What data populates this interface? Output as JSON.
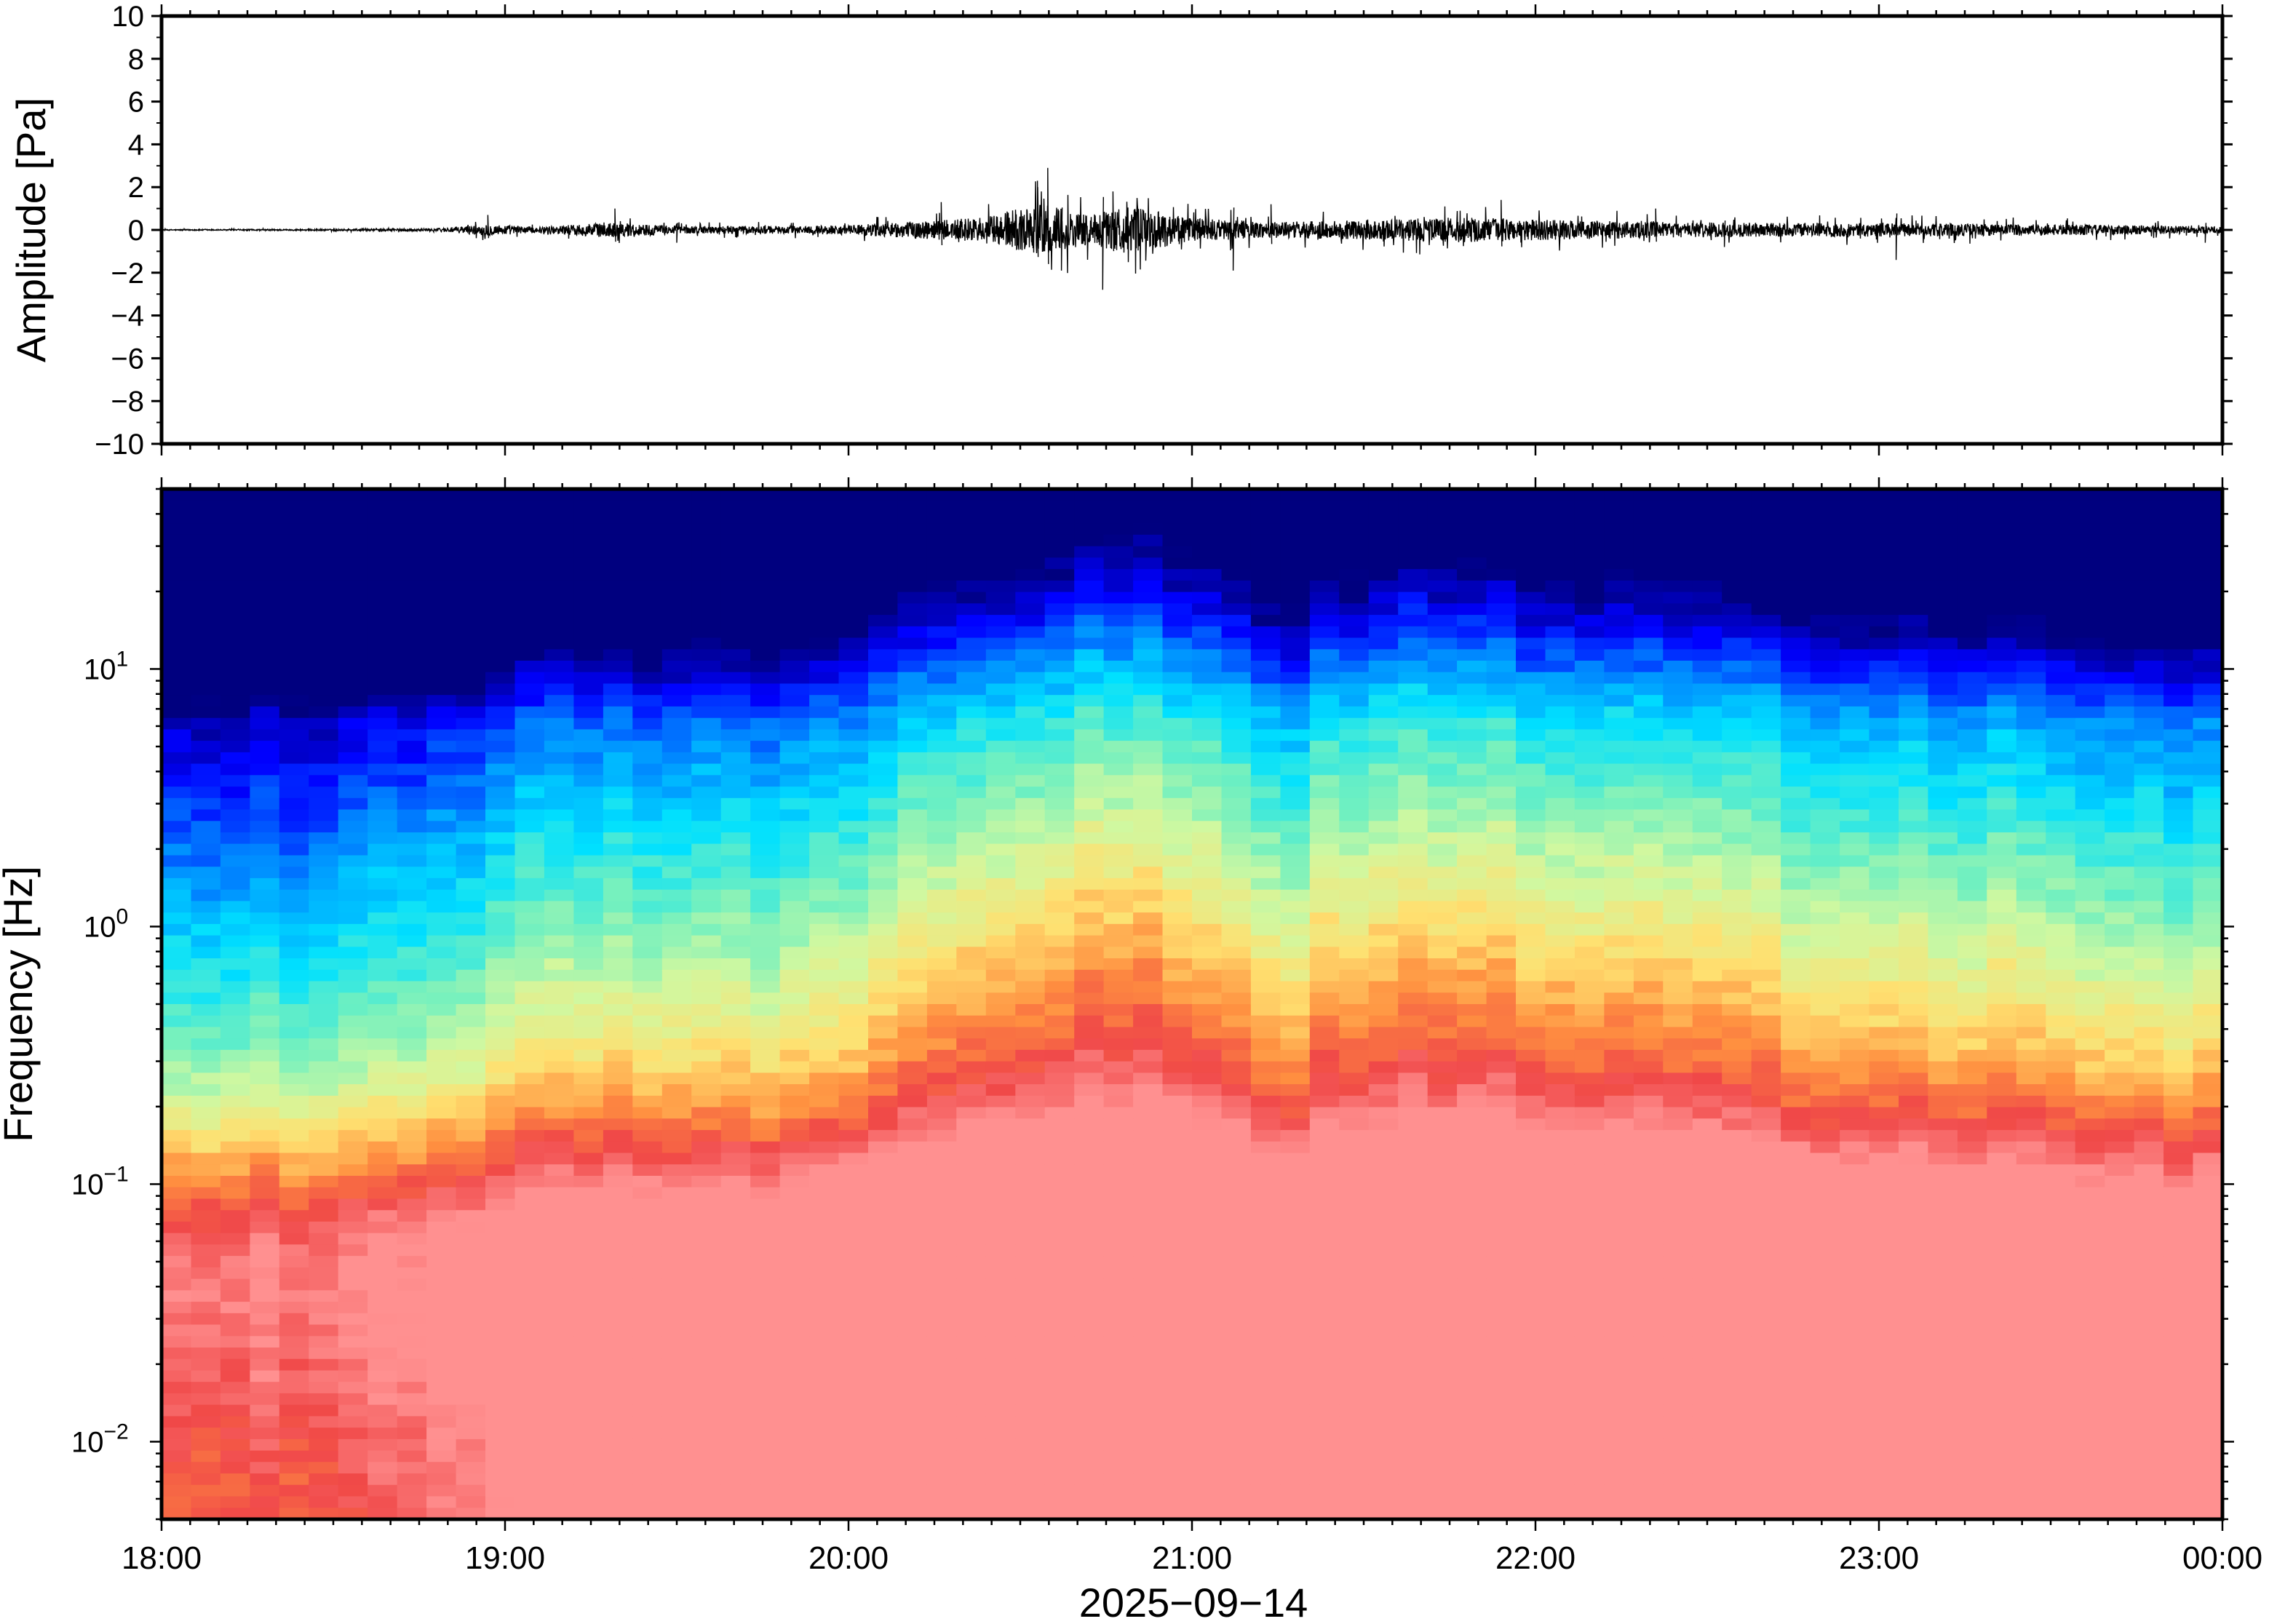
{
  "chart_data": [
    {
      "type": "line",
      "ylabel": "Amplitude [Pa]",
      "ylim": [
        -10,
        10
      ],
      "yticks": [
        "10",
        "8",
        "6",
        "4",
        "2",
        "0",
        "−2",
        "−4",
        "−6",
        "−8",
        "−10"
      ],
      "ytick_values": [
        10,
        8,
        6,
        4,
        2,
        0,
        -2,
        -4,
        -6,
        -8,
        -10
      ],
      "xlim_hours": [
        18,
        24
      ],
      "line_color": "#000000",
      "envelope": {
        "x_hours": [
          18.0,
          18.5,
          18.8,
          18.95,
          19.1,
          19.3,
          19.5,
          19.8,
          20.0,
          20.25,
          20.4,
          20.55,
          20.7,
          20.8,
          21.0,
          21.2,
          21.35,
          21.5,
          21.6,
          21.75,
          21.9,
          22.1,
          22.4,
          22.8,
          23.1,
          23.4,
          23.7,
          23.9,
          24.0
        ],
        "max_abs_pa": [
          0.05,
          0.08,
          0.15,
          0.6,
          0.3,
          0.8,
          0.4,
          0.4,
          0.5,
          1.0,
          1.3,
          2.8,
          1.5,
          2.5,
          1.3,
          0.8,
          0.9,
          1.0,
          1.1,
          1.3,
          1.2,
          1.0,
          0.8,
          0.7,
          0.7,
          0.6,
          0.5,
          0.4,
          0.3
        ]
      },
      "peaks": [
        {
          "x_hours": 18.95,
          "y_pa": 0.7
        },
        {
          "x_hours": 19.32,
          "y_pa": 1.0
        },
        {
          "x_hours": 19.5,
          "y_pa": -0.6
        },
        {
          "x_hours": 20.27,
          "y_pa": 1.3
        },
        {
          "x_hours": 20.55,
          "y_pa": 2.3
        },
        {
          "x_hours": 20.58,
          "y_pa": 2.9
        },
        {
          "x_hours": 20.62,
          "y_pa": -1.9
        },
        {
          "x_hours": 20.74,
          "y_pa": -2.8
        },
        {
          "x_hours": 20.77,
          "y_pa": 1.8
        },
        {
          "x_hours": 21.12,
          "y_pa": -1.9
        },
        {
          "x_hours": 21.23,
          "y_pa": 1.2
        },
        {
          "x_hours": 21.9,
          "y_pa": 1.4
        },
        {
          "x_hours": 22.35,
          "y_pa": 1.0
        },
        {
          "x_hours": 22.55,
          "y_pa": -0.8
        },
        {
          "x_hours": 23.05,
          "y_pa": -1.4
        },
        {
          "x_hours": 23.95,
          "y_pa": -0.6
        }
      ]
    },
    {
      "type": "heatmap",
      "ylabel": "Frequency [Hz]",
      "xlabel": "2025−09−14",
      "yscale": "log",
      "ylim": [
        0.005,
        50
      ],
      "yticks": [
        {
          "value": 10,
          "base": "10",
          "exp": "1"
        },
        {
          "value": 1,
          "base": "10",
          "exp": "0"
        },
        {
          "value": 0.1,
          "base": "10",
          "exp": "−1"
        },
        {
          "value": 0.01,
          "base": "10",
          "exp": "−2"
        }
      ],
      "xticks": [
        "18:00",
        "19:00",
        "20:00",
        "21:00",
        "22:00",
        "23:00",
        "00:00"
      ],
      "xtick_hours": [
        18,
        19,
        20,
        21,
        22,
        23,
        24
      ],
      "colormap": [
        "#00007f",
        "#0000ff",
        "#0080ff",
        "#00e0ff",
        "#70f0c0",
        "#d0f8a0",
        "#ffe070",
        "#ff9040",
        "#f04848",
        "#ff9090"
      ],
      "description_level_scale": "0 = dark blue (low power), 1 = pink (high power)",
      "energy": {
        "x_hours": [
          18.0,
          18.5,
          18.9,
          19.1,
          19.5,
          20.0,
          20.2,
          20.5,
          20.8,
          21.0,
          21.3,
          21.45,
          21.7,
          22.0,
          22.5,
          23.0,
          23.5,
          24.0
        ],
        "level": [
          0.0,
          -0.05,
          0.1,
          0.22,
          0.2,
          0.22,
          0.38,
          0.45,
          0.55,
          0.48,
          0.35,
          0.45,
          0.5,
          0.45,
          0.38,
          0.32,
          0.28,
          0.2
        ]
      }
    }
  ]
}
